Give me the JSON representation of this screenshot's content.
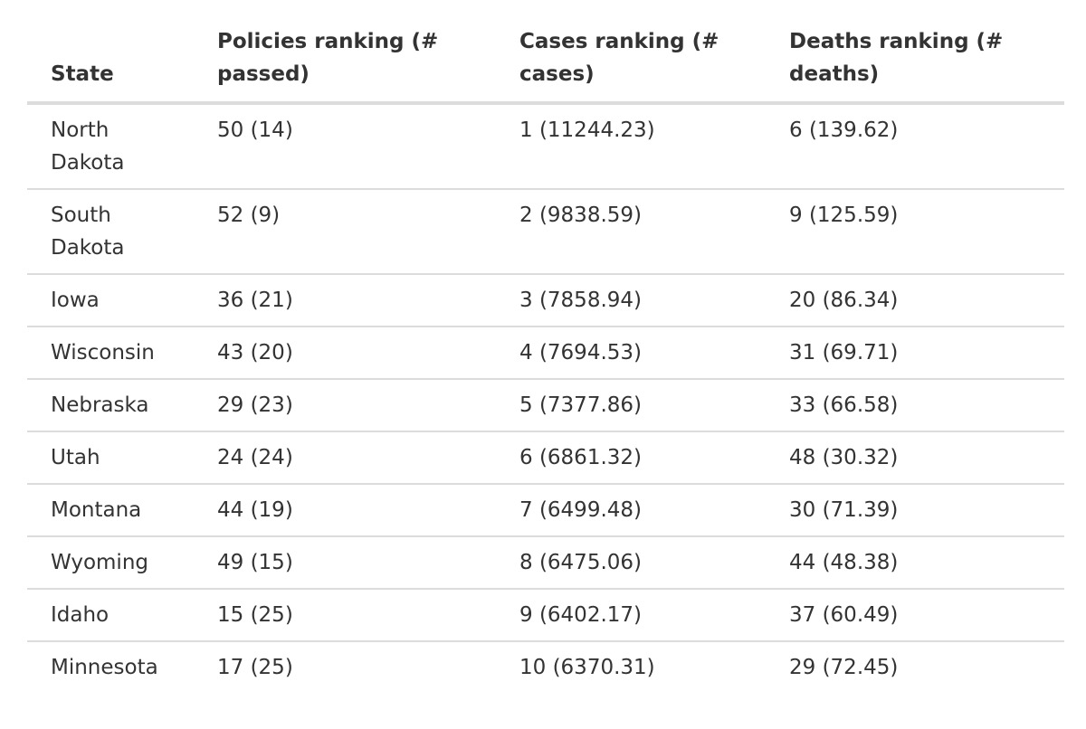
{
  "table": {
    "headers": [
      "State",
      "Policies ranking (# passed)",
      "Cases ranking (# cases)",
      "Deaths ranking (# deaths)"
    ],
    "rows": [
      [
        "North Dakota",
        "50 (14)",
        "1 (11244.23)",
        "6 (139.62)"
      ],
      [
        "South Dakota",
        "52 (9)",
        "2 (9838.59)",
        "9 (125.59)"
      ],
      [
        "Iowa",
        "36 (21)",
        "3 (7858.94)",
        "20 (86.34)"
      ],
      [
        "Wisconsin",
        "43 (20)",
        "4 (7694.53)",
        "31 (69.71)"
      ],
      [
        "Nebraska",
        "29 (23)",
        "5 (7377.86)",
        "33 (66.58)"
      ],
      [
        "Utah",
        "24 (24)",
        "6 (6861.32)",
        "48 (30.32)"
      ],
      [
        "Montana",
        "44 (19)",
        "7 (6499.48)",
        "30 (71.39)"
      ],
      [
        "Wyoming",
        "49 (15)",
        "8 (6475.06)",
        "44 (48.38)"
      ],
      [
        "Idaho",
        "15 (25)",
        "9 (6402.17)",
        "37 (60.49)"
      ],
      [
        "Minnesota",
        "17 (25)",
        "10 (6370.31)",
        "29 (72.45)"
      ]
    ]
  }
}
